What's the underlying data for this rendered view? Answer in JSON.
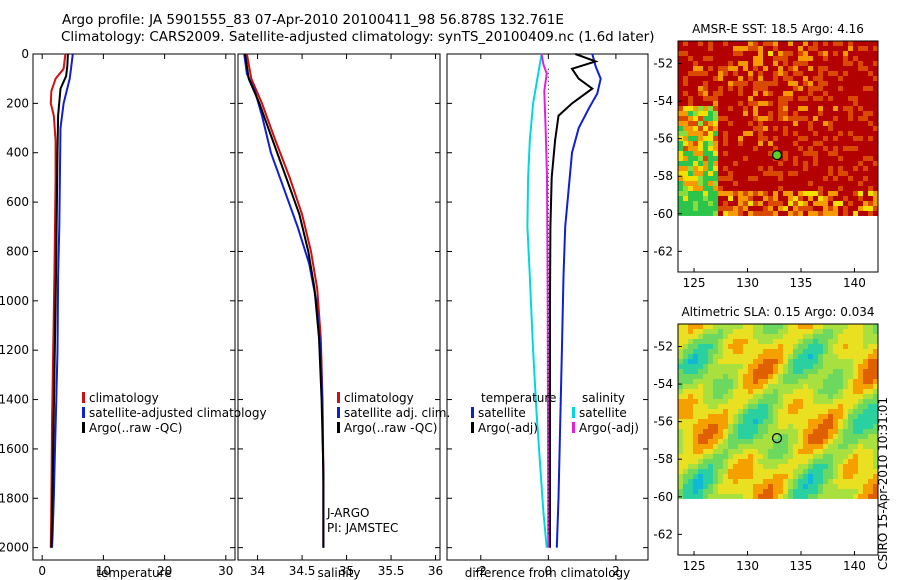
{
  "title": {
    "line1": "Argo profile: JA 5901555_83 07-Apr-2010 20100411_98 56.878S 132.761E",
    "line2": "Climatology: CARS2009. Satellite-adjusted climatology: synTS_20100409.nc (1.6d later)"
  },
  "side_label": "CSIRO 15-Apr-2010 10:31:01",
  "chart_data": [
    {
      "id": "temperature",
      "type": "line",
      "xlabel": "temperature",
      "xlim": [
        -1.5,
        31.5
      ],
      "ylim": [
        2050,
        0
      ],
      "xticks": [
        0,
        10,
        20,
        30
      ],
      "xtick_labels": [
        "0",
        "10",
        "20",
        "30"
      ],
      "yticks": [
        0,
        200,
        400,
        600,
        800,
        1000,
        1200,
        1400,
        1600,
        1800,
        2000
      ],
      "ytick_labels": [
        "0",
        "200",
        "400",
        "600",
        "800",
        "1000",
        "1200",
        "1400",
        "1600",
        "1800",
        "2000"
      ],
      "legend": [
        "climatology",
        "satellite-adjusted climatology",
        "Argo(..raw -QC)"
      ],
      "series": [
        {
          "name": "climatology",
          "color": "#d01010",
          "x": [
            3.8,
            3.5,
            2.2,
            1.5,
            1.4,
            1.9,
            2.2,
            2.2,
            2.1,
            2.0,
            1.8,
            1.6,
            1.5,
            1.4
          ],
          "y": [
            0,
            60,
            100,
            150,
            200,
            250,
            350,
            500,
            700,
            900,
            1200,
            1500,
            1800,
            2000
          ]
        },
        {
          "name": "satellite-adjusted climatology",
          "color": "#1020d0",
          "x": [
            5.0,
            4.7,
            4.5,
            3.5,
            3.0,
            2.9,
            2.8,
            2.6,
            2.5,
            2.3,
            2.1,
            1.9,
            1.7,
            1.6
          ],
          "y": [
            0,
            60,
            100,
            200,
            300,
            500,
            700,
            900,
            1200,
            1400,
            1600,
            1800,
            1950,
            2000
          ]
        },
        {
          "name": "Argo(..raw -QC)",
          "color": "#000000",
          "x": [
            4.2,
            4.1,
            3.9,
            3.0,
            2.6,
            2.5,
            2.4,
            2.3,
            2.2,
            2.0,
            1.8,
            1.6,
            1.5
          ],
          "y": [
            0,
            50,
            90,
            140,
            250,
            400,
            600,
            800,
            1000,
            1300,
            1600,
            1900,
            2000
          ]
        }
      ]
    },
    {
      "id": "salinity",
      "type": "line",
      "xlabel": "salinity",
      "xlim": [
        33.78,
        36.05
      ],
      "ylim": [
        2050,
        0
      ],
      "xticks": [
        34,
        34.5,
        35,
        35.5,
        36
      ],
      "xtick_labels": [
        "34",
        "34.5",
        "35",
        "35.5",
        "36"
      ],
      "legend": [
        "climatology",
        "satellite adj. clim.",
        "Argo(..raw -QC)"
      ],
      "annotation": [
        "J-ARGO",
        "PI: JAMSTEC"
      ],
      "series": [
        {
          "name": "climatology",
          "color": "#d01010",
          "x": [
            33.88,
            33.93,
            34.05,
            34.2,
            34.36,
            34.5,
            34.6,
            34.67,
            34.71,
            34.73,
            34.74,
            34.74
          ],
          "y": [
            0,
            100,
            200,
            350,
            500,
            650,
            800,
            950,
            1150,
            1400,
            1700,
            2000
          ]
        },
        {
          "name": "satellite adj. clim.",
          "color": "#1020d0",
          "x": [
            33.85,
            33.88,
            33.97,
            34.05,
            34.15,
            34.3,
            34.45,
            34.58,
            34.66,
            34.71,
            34.73,
            34.74,
            34.74
          ],
          "y": [
            0,
            80,
            150,
            250,
            400,
            550,
            700,
            850,
            1000,
            1200,
            1450,
            1750,
            2000
          ]
        },
        {
          "name": "Argo(..raw -QC)",
          "color": "#000000",
          "x": [
            33.86,
            33.9,
            34.02,
            34.17,
            34.32,
            34.47,
            34.57,
            34.64,
            34.69,
            34.72,
            34.74,
            34.74
          ],
          "y": [
            0,
            100,
            200,
            350,
            500,
            650,
            800,
            950,
            1150,
            1400,
            1700,
            2000
          ]
        }
      ]
    },
    {
      "id": "difference",
      "type": "line",
      "xlabel": "difference from climatology",
      "xlim": [
        -3.0,
        2.95
      ],
      "ylim": [
        2050,
        0
      ],
      "xticks": [
        -2,
        0,
        2
      ],
      "xtick_labels": [
        "-2",
        "0",
        "2"
      ],
      "legend_titles": [
        "temperature",
        "salinity"
      ],
      "legend": [
        "satellite",
        "Argo(-adj)",
        "satellite",
        "Argo(-adj)"
      ],
      "series": [
        {
          "name": "temperature satellite",
          "color": "#1020d0",
          "x": [
            1.3,
            1.4,
            1.55,
            1.45,
            1.2,
            0.9,
            0.7,
            0.6,
            0.5,
            0.45,
            0.4,
            0.35,
            0.3,
            0.25
          ],
          "y": [
            0,
            50,
            100,
            160,
            220,
            300,
            400,
            550,
            700,
            900,
            1200,
            1500,
            1800,
            2000
          ]
        },
        {
          "name": "temperature Argo(-adj)",
          "color": "#000000",
          "x": [
            0.8,
            1.4,
            0.7,
            0.9,
            1.3,
            0.7,
            0.3,
            0.2,
            0.1,
            0.06,
            0.05,
            0.05,
            0.05
          ],
          "y": [
            0,
            30,
            60,
            100,
            140,
            200,
            250,
            350,
            500,
            700,
            1000,
            1500,
            2000
          ]
        },
        {
          "name": "salinity satellite",
          "color": "#00d8e0",
          "x": [
            -0.2,
            -0.3,
            -0.45,
            -0.55,
            -0.6,
            -0.62,
            -0.55,
            -0.45,
            -0.35,
            -0.25,
            -0.15,
            -0.05
          ],
          "y": [
            0,
            80,
            200,
            350,
            500,
            700,
            900,
            1200,
            1450,
            1650,
            1850,
            2000
          ]
        },
        {
          "name": "salinity Argo(-adj)",
          "color": "#e020e0",
          "x": [
            -0.2,
            -0.15,
            -0.05,
            -0.12,
            -0.08,
            -0.04,
            -0.03,
            -0.02,
            -0.01,
            0.0
          ],
          "y": [
            0,
            40,
            80,
            150,
            300,
            500,
            700,
            1000,
            1500,
            2000
          ]
        }
      ]
    },
    {
      "id": "sst-map",
      "type": "heatmap",
      "title": "AMSR-E SST: 18.5 Argo: 4.16",
      "xlim": [
        123.5,
        142.2
      ],
      "ylim": [
        -63.1,
        -50.8
      ],
      "data_extent_y": [
        -60.1,
        -50.8
      ],
      "xticks": [
        125,
        130,
        135,
        140
      ],
      "xtick_labels": [
        "125",
        "130",
        "135",
        "140"
      ],
      "yticks": [
        -52,
        -54,
        -56,
        -58,
        -60,
        -62
      ],
      "ytick_labels": [
        "-52",
        "-54",
        "-56",
        "-58",
        "-60",
        "-62"
      ],
      "argo_position": [
        132.761,
        -56.878
      ],
      "colors": [
        "#b30000",
        "#d94a00",
        "#f59a00",
        "#f2e000",
        "#8adc3c",
        "#2cc44a"
      ]
    },
    {
      "id": "sla-map",
      "type": "heatmap",
      "title": "Altimetric SLA: 0.15 Argo: 0.034",
      "xlim": [
        123.5,
        142.2
      ],
      "ylim": [
        -63.1,
        -50.8
      ],
      "data_extent_y": [
        -60.1,
        -50.8
      ],
      "xticks": [
        125,
        130,
        135,
        140
      ],
      "xtick_labels": [
        "125",
        "130",
        "135",
        "140"
      ],
      "yticks": [
        -52,
        -54,
        -56,
        -58,
        -60,
        -62
      ],
      "ytick_labels": [
        "-52",
        "-54",
        "-56",
        "-58",
        "-60",
        "-62"
      ],
      "argo_position": [
        132.761,
        -56.878
      ],
      "colors": [
        "#10b8d8",
        "#2ad0a0",
        "#6cd860",
        "#a8e040",
        "#e8e020",
        "#f5a000",
        "#e06000"
      ]
    }
  ]
}
